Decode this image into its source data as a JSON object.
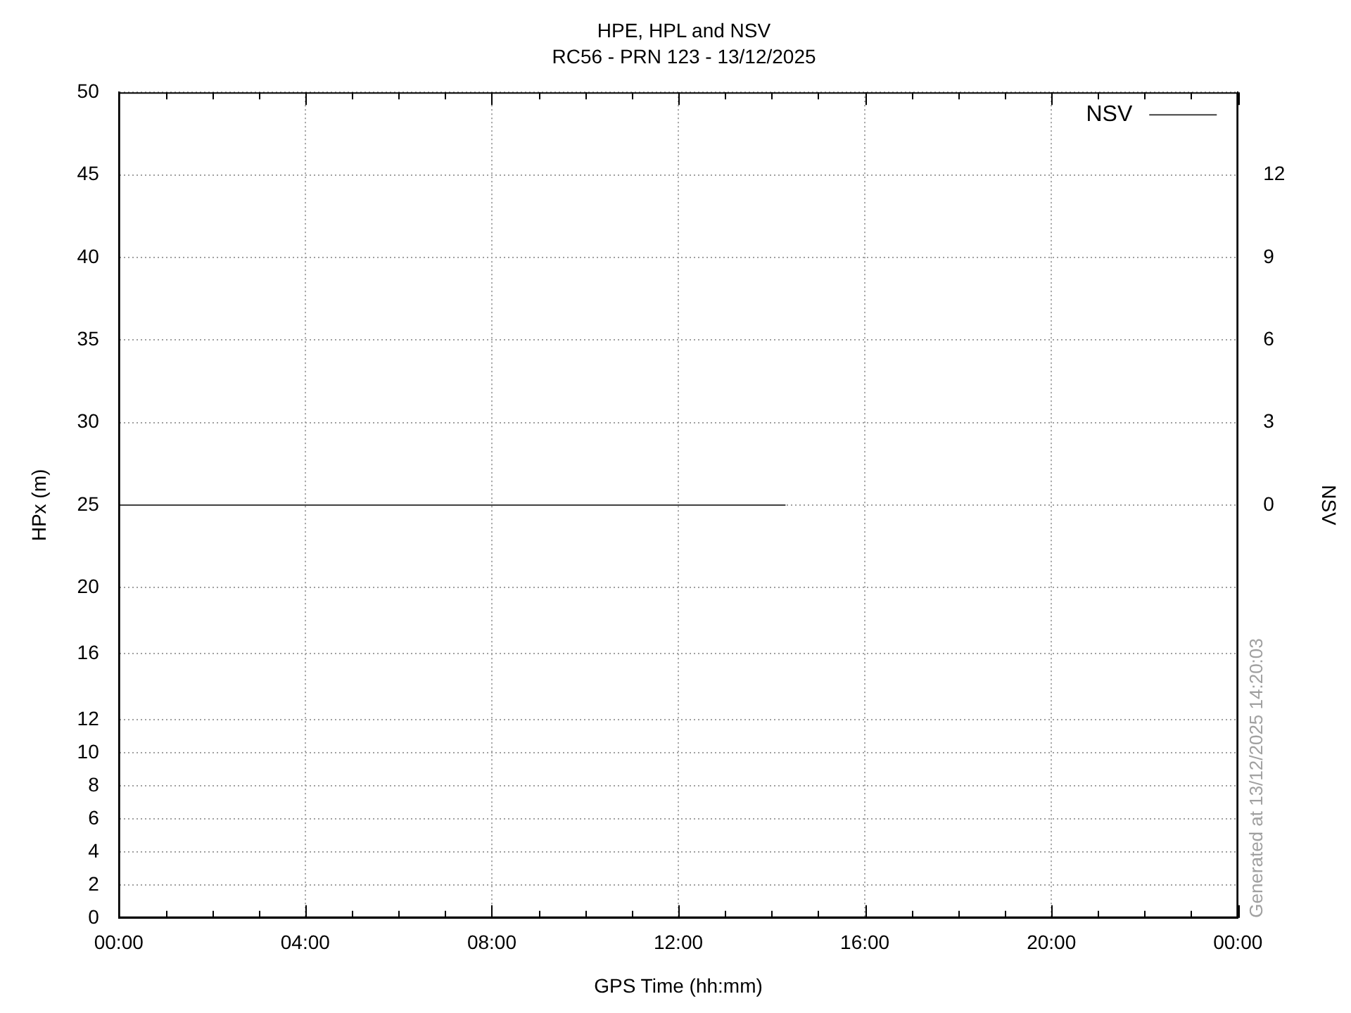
{
  "chart_data": {
    "type": "line",
    "title": "HPE, HPL and NSV",
    "subtitle": "RC56 - PRN 123 - 13/12/2025",
    "xlabel": "GPS Time (hh:mm)",
    "ylabel": "HPx (m)",
    "y2label": "NSV",
    "annotations": [
      "Generated at 13/12/2025 14:20:03"
    ],
    "series": [
      {
        "name": "NSV",
        "color": "#404040",
        "axis": "y2",
        "x": [
          0,
          14.3
        ],
        "values": [
          0,
          0
        ]
      }
    ],
    "xlim": [
      0,
      24
    ],
    "xticks": [
      {
        "value": 0,
        "label": "00:00"
      },
      {
        "value": 1,
        "label": null
      },
      {
        "value": 2,
        "label": null
      },
      {
        "value": 3,
        "label": null
      },
      {
        "value": 4,
        "label": "04:00"
      },
      {
        "value": 5,
        "label": null
      },
      {
        "value": 6,
        "label": null
      },
      {
        "value": 7,
        "label": null
      },
      {
        "value": 8,
        "label": "08:00"
      },
      {
        "value": 9,
        "label": null
      },
      {
        "value": 10,
        "label": null
      },
      {
        "value": 11,
        "label": null
      },
      {
        "value": 12,
        "label": "12:00"
      },
      {
        "value": 13,
        "label": null
      },
      {
        "value": 14,
        "label": null
      },
      {
        "value": 15,
        "label": null
      },
      {
        "value": 16,
        "label": "16:00"
      },
      {
        "value": 17,
        "label": null
      },
      {
        "value": 18,
        "label": null
      },
      {
        "value": 19,
        "label": null
      },
      {
        "value": 20,
        "label": "20:00"
      },
      {
        "value": 21,
        "label": null
      },
      {
        "value": 22,
        "label": null
      },
      {
        "value": 23,
        "label": null
      },
      {
        "value": 24,
        "label": "00:00"
      }
    ],
    "ylim": [
      0,
      50
    ],
    "yticks": [
      0,
      2,
      4,
      6,
      8,
      10,
      12,
      16,
      20,
      25,
      30,
      35,
      40,
      45,
      50
    ],
    "y2lim": [
      -15,
      15
    ],
    "y2ticks": [
      0,
      3,
      6,
      9,
      12
    ],
    "grid": true,
    "legend": "top right",
    "marker": "none",
    "line_style": "solid"
  }
}
